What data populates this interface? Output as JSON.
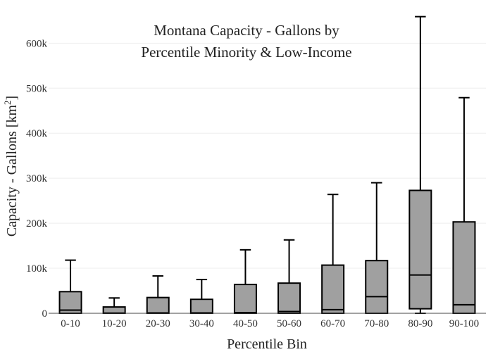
{
  "chart_data": {
    "type": "box",
    "title_lines": [
      "Montana Capacity - Gallons by",
      "Percentile Minority & Low-Income"
    ],
    "xlabel": "Percentile Bin",
    "ylabel_text": "Capacity - Gallons  [km",
    "ylabel_sup": "2",
    "ylabel_close": "]",
    "ylim": [
      0,
      660000
    ],
    "yticks": [
      0,
      100000,
      200000,
      300000,
      400000,
      500000,
      600000
    ],
    "ytick_labels": [
      "0",
      "100k",
      "200k",
      "300k",
      "400k",
      "500k",
      "600k"
    ],
    "grid": true,
    "categories": [
      "0-10",
      "10-20",
      "20-30",
      "30-40",
      "40-50",
      "50-60",
      "60-70",
      "70-80",
      "80-90",
      "90-100"
    ],
    "boxes": [
      {
        "min": 0,
        "q1": 0,
        "median": 7000,
        "q3": 48000,
        "max": 118000
      },
      {
        "min": 0,
        "q1": 0,
        "median": 500,
        "q3": 14000,
        "max": 34000
      },
      {
        "min": 0,
        "q1": 0,
        "median": 1000,
        "q3": 35000,
        "max": 83000
      },
      {
        "min": 0,
        "q1": 0,
        "median": 1000,
        "q3": 31000,
        "max": 75000
      },
      {
        "min": 0,
        "q1": 0,
        "median": 1500,
        "q3": 64000,
        "max": 141000
      },
      {
        "min": 0,
        "q1": 0,
        "median": 4000,
        "q3": 67000,
        "max": 163000
      },
      {
        "min": 0,
        "q1": 0,
        "median": 8000,
        "q3": 107000,
        "max": 264000
      },
      {
        "min": 0,
        "q1": 0,
        "median": 37000,
        "q3": 117000,
        "max": 290000
      },
      {
        "min": 0,
        "q1": 10000,
        "median": 85000,
        "q3": 273000,
        "max": 659000
      },
      {
        "min": 0,
        "q1": 0,
        "median": 19000,
        "q3": 203000,
        "max": 479000
      }
    ],
    "box_color": "#a0a0a0",
    "line_color": "#000000"
  }
}
